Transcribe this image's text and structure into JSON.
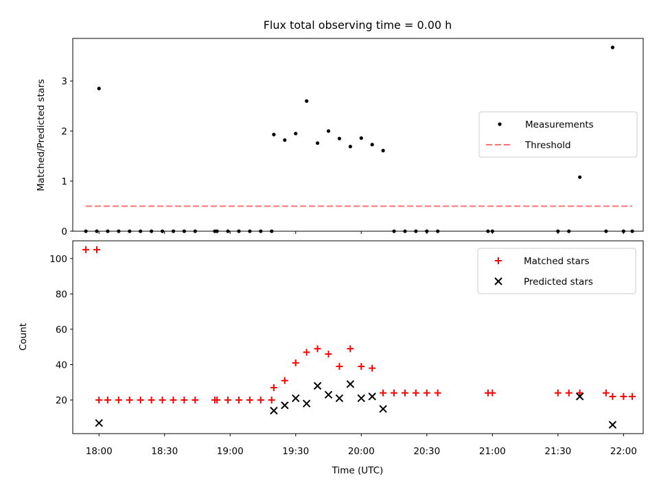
{
  "figure": {
    "title": "Flux total observing time = 0.00 h",
    "xlabel": "Time (UTC)"
  },
  "chart_data": [
    {
      "type": "scatter",
      "panel": "top",
      "ylabel": "Matched/Predicted stars",
      "xlim": [
        "17:48",
        "22:09"
      ],
      "ylim": [
        0,
        3.85
      ],
      "yticks": [
        "0",
        "1",
        "2",
        "3"
      ],
      "xticks": [
        "18:00",
        "18:30",
        "19:00",
        "19:30",
        "20:00",
        "20:30",
        "21:00",
        "21:30",
        "22:00"
      ],
      "legend_position": "center-right",
      "series": [
        {
          "name": "Measurements",
          "marker": "dot",
          "color": "#000000",
          "points": [
            [
              "17:54",
              0
            ],
            [
              "17:59",
              0
            ],
            [
              "18:00",
              2.85
            ],
            [
              "18:04",
              0
            ],
            [
              "18:09",
              0
            ],
            [
              "18:14",
              0
            ],
            [
              "18:19",
              0
            ],
            [
              "18:24",
              0
            ],
            [
              "18:29",
              0
            ],
            [
              "18:34",
              0
            ],
            [
              "18:39",
              0
            ],
            [
              "18:44",
              0
            ],
            [
              "18:53",
              0
            ],
            [
              "18:54",
              0
            ],
            [
              "18:59",
              0
            ],
            [
              "19:04",
              0
            ],
            [
              "19:09",
              0
            ],
            [
              "19:14",
              0
            ],
            [
              "19:19",
              0
            ],
            [
              "19:20",
              1.93
            ],
            [
              "19:25",
              1.82
            ],
            [
              "19:30",
              1.95
            ],
            [
              "19:35",
              2.6
            ],
            [
              "19:40",
              1.76
            ],
            [
              "19:45",
              2.0
            ],
            [
              "19:50",
              1.85
            ],
            [
              "19:55",
              1.69
            ],
            [
              "20:00",
              1.86
            ],
            [
              "20:05",
              1.73
            ],
            [
              "20:10",
              1.61
            ],
            [
              "20:15",
              0
            ],
            [
              "20:20",
              0
            ],
            [
              "20:25",
              0
            ],
            [
              "20:30",
              0
            ],
            [
              "20:35",
              0
            ],
            [
              "20:58",
              0
            ],
            [
              "21:00",
              0
            ],
            [
              "21:30",
              0
            ],
            [
              "21:35",
              0
            ],
            [
              "21:40",
              1.08
            ],
            [
              "21:52",
              0
            ],
            [
              "21:55",
              3.67
            ],
            [
              "22:00",
              0
            ],
            [
              "22:04",
              0
            ]
          ]
        },
        {
          "name": "Threshold",
          "style": "dashed",
          "color": "#ff7070",
          "points": [
            [
              "17:54",
              0.5
            ],
            [
              "22:04",
              0.5
            ]
          ]
        }
      ]
    },
    {
      "type": "scatter",
      "panel": "bottom",
      "ylabel": "Count",
      "xlim": [
        "17:48",
        "22:09"
      ],
      "ylim": [
        1,
        110
      ],
      "yticks": [
        "20",
        "40",
        "60",
        "80",
        "100"
      ],
      "xticks": [
        "18:00",
        "18:30",
        "19:00",
        "19:30",
        "20:00",
        "20:30",
        "21:00",
        "21:30",
        "22:00"
      ],
      "legend_position": "top-right",
      "series": [
        {
          "name": "Matched stars",
          "marker": "plus",
          "color": "#ff0000",
          "points": [
            [
              "17:54",
              105
            ],
            [
              "17:59",
              105
            ],
            [
              "18:00",
              20
            ],
            [
              "18:04",
              20
            ],
            [
              "18:09",
              20
            ],
            [
              "18:14",
              20
            ],
            [
              "18:19",
              20
            ],
            [
              "18:24",
              20
            ],
            [
              "18:29",
              20
            ],
            [
              "18:34",
              20
            ],
            [
              "18:39",
              20
            ],
            [
              "18:44",
              20
            ],
            [
              "18:53",
              20
            ],
            [
              "18:54",
              20
            ],
            [
              "18:59",
              20
            ],
            [
              "19:04",
              20
            ],
            [
              "19:09",
              20
            ],
            [
              "19:14",
              20
            ],
            [
              "19:19",
              20
            ],
            [
              "19:20",
              27
            ],
            [
              "19:25",
              31
            ],
            [
              "19:30",
              41
            ],
            [
              "19:35",
              47
            ],
            [
              "19:40",
              49
            ],
            [
              "19:45",
              46
            ],
            [
              "19:50",
              39
            ],
            [
              "19:55",
              49
            ],
            [
              "20:00",
              39
            ],
            [
              "20:05",
              38
            ],
            [
              "20:10",
              24
            ],
            [
              "20:15",
              24
            ],
            [
              "20:20",
              24
            ],
            [
              "20:25",
              24
            ],
            [
              "20:30",
              24
            ],
            [
              "20:35",
              24
            ],
            [
              "20:58",
              24
            ],
            [
              "21:00",
              24
            ],
            [
              "21:30",
              24
            ],
            [
              "21:35",
              24
            ],
            [
              "21:40",
              24
            ],
            [
              "21:52",
              24
            ],
            [
              "21:55",
              22
            ],
            [
              "22:00",
              22
            ],
            [
              "22:04",
              22
            ]
          ]
        },
        {
          "name": "Predicted stars",
          "marker": "x",
          "color": "#000000",
          "points": [
            [
              "18:00",
              7
            ],
            [
              "19:20",
              14
            ],
            [
              "19:25",
              17
            ],
            [
              "19:30",
              21
            ],
            [
              "19:35",
              18
            ],
            [
              "19:40",
              28
            ],
            [
              "19:45",
              23
            ],
            [
              "19:50",
              21
            ],
            [
              "19:55",
              29
            ],
            [
              "20:00",
              21
            ],
            [
              "20:05",
              22
            ],
            [
              "20:10",
              15
            ],
            [
              "21:40",
              22
            ],
            [
              "21:55",
              6
            ]
          ]
        }
      ]
    }
  ]
}
